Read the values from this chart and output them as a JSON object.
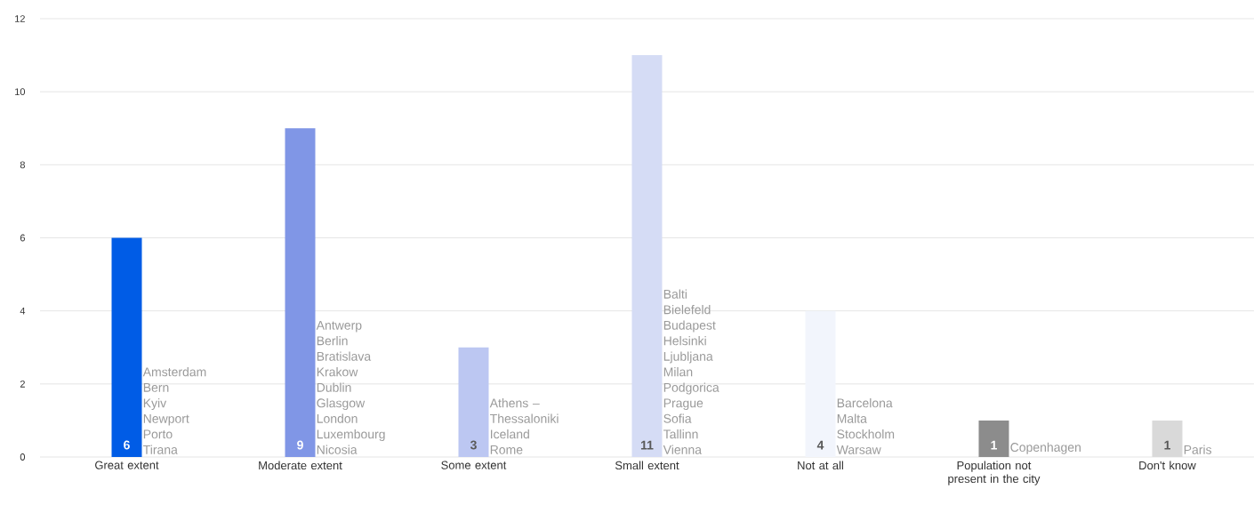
{
  "chart_data": {
    "type": "bar",
    "categories": [
      "Great extent",
      "Moderate extent",
      "Some extent",
      "Small extent",
      "Not at all",
      "Population not present in the city",
      "Don't know"
    ],
    "values": [
      6,
      9,
      3,
      11,
      4,
      1,
      1
    ],
    "colors": [
      "#005ce6",
      "#8096e6",
      "#bcc7f2",
      "#d5dcf5",
      "#f2f5fc",
      "#8c8c8c",
      "#d9d9d9"
    ],
    "ylim": [
      0,
      12
    ],
    "yticks": [
      0,
      2,
      4,
      6,
      8,
      10,
      12
    ],
    "grid": "y",
    "data_labels": true,
    "annotations": [
      "Amsterdam\nBern\nKyiv\nNewport\nPorto\nTirana",
      "Antwerp\nBerlin\nBratislava\nKrakow\nDublin\nGlasgow\nLondon\nLuxembourg\nNicosia",
      "Athens – Thessaloniki\nIceland\nRome",
      "Balti\nBielefeld\nBudapest\nHelsinki\nLjubljana\nMilan\nPodgorica\nPrague\nSofia\nTallinn\nVienna",
      "Barcelona\nMalta\nStockholm\nWarsaw",
      "Copenhagen",
      "Paris"
    ]
  }
}
